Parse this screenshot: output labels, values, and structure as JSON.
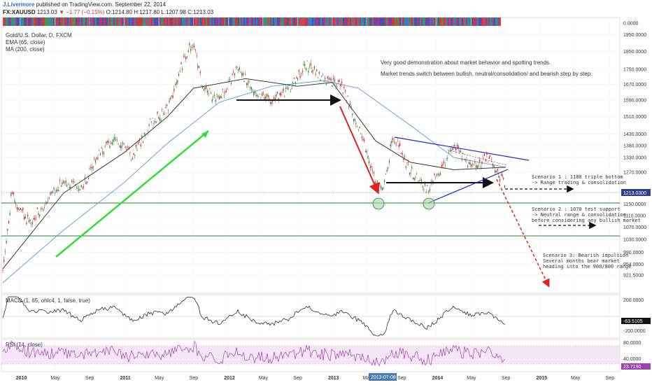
{
  "header": {
    "author": "J.Livermore",
    "published": "published on TradingView.com, September 22, 2014",
    "symbol": "FX:XAUUSD",
    "last": "1213.03",
    "change": "−1.77 (−0.15%)",
    "open": "O:1214.80",
    "high": "H:1217.80",
    "low": "L:1207.98",
    "close": "C:1213.03"
  },
  "legend": {
    "title": "Gold/U.S. Dollar, D, FXCM",
    "ema": "EMA (65, close)",
    "ma": "MA (200, close)",
    "macd": "MACD (1, 65, ohlc4, 1, false, true)",
    "rsi": "RSI (14, close)"
  },
  "notes": {
    "line1": "Very good demonstration about market behavior and spotting trends.",
    "line2": "Market trends switch between bullish, neutral/consolidation/ and bearish step by step."
  },
  "scenarios": [
    {
      "lines": [
        "Scenario 1 : 1180 triple bottom",
        "-> Range trading & consolidation"
      ]
    },
    {
      "lines": [
        "Scenario 2 : 1070 test support",
        "-> Neutral range & consolidation",
        "before considering any bullish market"
      ]
    },
    {
      "lines": [
        "Scenario 3: Bearish impulsion",
        "Several months bear market",
        "heading into the 900/800 range"
      ]
    }
  ],
  "price_axis_labels": [
    "0.0000",
    "1950.0000",
    "1850.0000",
    "1750.0000",
    "1670.0000",
    "1590.0000",
    "1510.0000",
    "1430.0000",
    "1380.0000",
    "1330.0000",
    "1270.0000",
    "1150.0000",
    "1110.0000",
    "1070.0000",
    "1030.0000",
    "990.0000",
    "954.0000",
    "921.5000"
  ],
  "current_price_label": "1213.0300",
  "macd_axis_labels": [
    "200.0000",
    "-200.0000"
  ],
  "macd_value_label": "-63.5105",
  "rsi_axis_labels": [
    "80.0000",
    "40.0000"
  ],
  "rsi_value_label": "23.7190",
  "time_axis_labels": [
    "2010",
    "May",
    "Sep",
    "2011",
    "May",
    "Sep",
    "2012",
    "May",
    "Sep",
    "2013",
    "May",
    "Sep",
    "2014",
    "May",
    "Sep",
    "2015",
    "May",
    "Sep"
  ],
  "time_cursor_label": "2013-07-08",
  "colors": {
    "up_trend": "#33dd33",
    "down_arrow": "#e02222",
    "neutral_arrow": "#111111",
    "triangle": "#1a2fcc",
    "support": "#2e7d32",
    "ema": "#222222",
    "ma": "#5b9bd5",
    "rsi": "#a040b0"
  },
  "chart_data": {
    "type": "line",
    "title": "Gold/U.S. Dollar, D, FXCM",
    "y_scale": "log",
    "ylim": [
      900,
      1960
    ],
    "support_levels": [
      1180,
      1070
    ],
    "current_price": 1213.03,
    "series": [
      {
        "name": "Gold/U.S. Dollar",
        "x": [
          "2009-11",
          "2009-12",
          "2010-02",
          "2010-04",
          "2010-06",
          "2010-08",
          "2010-10",
          "2010-12",
          "2011-02",
          "2011-04",
          "2011-06",
          "2011-08",
          "2011-09",
          "2011-10",
          "2011-12",
          "2012-02",
          "2012-04",
          "2012-06",
          "2012-08",
          "2012-10",
          "2012-12",
          "2013-02",
          "2013-04",
          "2013-06",
          "2013-07",
          "2013-08",
          "2013-10",
          "2013-12",
          "2014-01",
          "2014-03",
          "2014-05",
          "2014-07",
          "2014-09"
        ],
        "values": [
          940,
          1180,
          1085,
          1150,
          1240,
          1200,
          1340,
          1410,
          1330,
          1480,
          1540,
          1820,
          1900,
          1650,
          1590,
          1760,
          1640,
          1590,
          1640,
          1780,
          1690,
          1670,
          1470,
          1230,
          1220,
          1420,
          1280,
          1200,
          1250,
          1380,
          1290,
          1330,
          1213
        ]
      },
      {
        "name": "EMA (65, close)",
        "x": [
          "2009-11",
          "2010-06",
          "2011-01",
          "2011-06",
          "2011-09",
          "2012-03",
          "2012-09",
          "2013-01",
          "2013-06",
          "2013-10",
          "2014-03",
          "2014-09"
        ],
        "values": [
          940,
          1190,
          1350,
          1510,
          1650,
          1700,
          1660,
          1680,
          1400,
          1310,
          1280,
          1290
        ]
      },
      {
        "name": "MA (200, close)",
        "x": [
          "2009-11",
          "2010-06",
          "2011-01",
          "2011-06",
          "2011-12",
          "2012-06",
          "2012-12",
          "2013-04",
          "2013-10",
          "2014-03",
          "2014-09"
        ],
        "values": [
          900,
          1060,
          1230,
          1390,
          1580,
          1660,
          1690,
          1650,
          1470,
          1330,
          1290
        ]
      }
    ]
  }
}
